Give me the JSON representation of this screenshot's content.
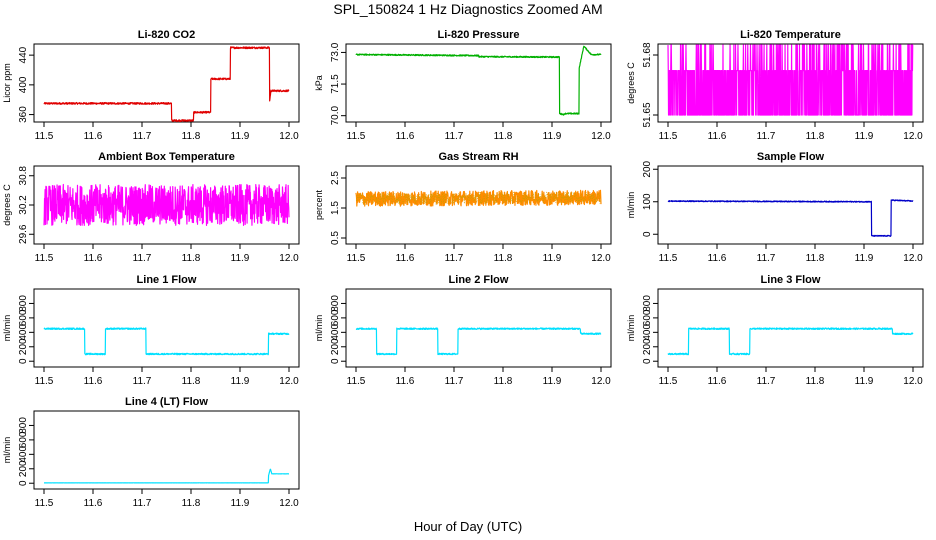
{
  "figure": {
    "title": "SPL_150824  1 Hz Diagnostics Zoomed AM",
    "xlabel": "Hour of Day (UTC)"
  },
  "chart_data": [
    {
      "type": "line",
      "title": "Li-820 CO2",
      "ylabel": "Licor ppm",
      "color": "#e00000",
      "xlim": [
        11.5,
        12.0
      ],
      "ylim": [
        350,
        455
      ],
      "xticks": [
        "11.5",
        "11.6",
        "11.7",
        "11.8",
        "11.9",
        "12.0"
      ],
      "yticks": [
        360,
        400,
        440
      ],
      "noise": 1.2,
      "series": [
        {
          "x": [
            11.5,
            11.76,
            11.76,
            11.805,
            11.805,
            11.84,
            11.84,
            11.88,
            11.88,
            11.96,
            11.96,
            11.963,
            11.963,
            12.0
          ],
          "y": [
            375,
            375,
            352,
            352,
            363,
            363,
            408,
            408,
            450,
            450,
            375,
            392,
            392,
            392
          ]
        }
      ]
    },
    {
      "type": "line",
      "title": "Li-820 Pressure",
      "ylabel": "kPa",
      "color": "#00b000",
      "xlim": [
        11.5,
        12.0
      ],
      "ylim": [
        69.7,
        73.4
      ],
      "xticks": [
        "11.5",
        "11.6",
        "11.7",
        "11.8",
        "11.9",
        "12.0"
      ],
      "yticks": [
        "70.0",
        "71.5",
        "73.0"
      ],
      "noise": 0.03,
      "series": [
        {
          "x": [
            11.5,
            11.75,
            11.75,
            11.915,
            11.915,
            11.925,
            11.925,
            11.955,
            11.955,
            11.965,
            11.98,
            12.0
          ],
          "y": [
            72.9,
            72.85,
            72.8,
            72.78,
            70.1,
            70.05,
            70.1,
            70.1,
            72.2,
            73.3,
            72.9,
            72.9
          ]
        }
      ]
    },
    {
      "type": "line",
      "title": "Li-820 Temperature",
      "ylabel": "degrees C",
      "color": "#ff00ff",
      "xlim": [
        11.5,
        12.0
      ],
      "ylim": [
        51.6465,
        51.6855
      ],
      "xticks": [
        "11.5",
        "11.6",
        "11.7",
        "11.8",
        "11.9",
        "12.0"
      ],
      "yticks": [
        "51.65",
        "51.68"
      ],
      "mode": "levels",
      "levels": [
        51.65,
        51.6722,
        51.685
      ],
      "weights": [
        0.5,
        0.38,
        0.12
      ],
      "series": [
        {
          "x": [
            11.5,
            12.0
          ],
          "y": [
            51.6722,
            51.6722
          ]
        }
      ]
    },
    {
      "type": "line",
      "title": "Ambient Box Temperature",
      "ylabel": "degrees C",
      "color": "#ff00ff",
      "xlim": [
        11.5,
        12.0
      ],
      "ylim": [
        29.4,
        31.0
      ],
      "xticks": [
        "11.5",
        "11.6",
        "11.7",
        "11.8",
        "11.9",
        "12.0"
      ],
      "yticks": [
        "29.6",
        "30.2",
        "30.8"
      ],
      "noise": 0.42,
      "series": [
        {
          "x": [
            11.5,
            12.0
          ],
          "y": [
            30.2,
            30.2
          ]
        }
      ]
    },
    {
      "type": "line",
      "title": "Gas Stream RH",
      "ylabel": "percent",
      "color": "#ff8c00",
      "overlay_color": "#c8a000",
      "xlim": [
        11.5,
        12.0
      ],
      "ylim": [
        0.3,
        2.9
      ],
      "xticks": [
        "11.5",
        "11.6",
        "11.7",
        "11.8",
        "11.9",
        "12.0"
      ],
      "yticks": [
        "0.5",
        "1.5",
        "2.5"
      ],
      "noise": 0.25,
      "series": [
        {
          "x": [
            11.5,
            12.0
          ],
          "y": [
            1.8,
            1.85
          ]
        }
      ]
    },
    {
      "type": "line",
      "title": "Sample Flow",
      "ylabel": "ml/min",
      "color": "#0000c8",
      "xlim": [
        11.5,
        12.0
      ],
      "ylim": [
        -30,
        210
      ],
      "xticks": [
        "11.5",
        "11.6",
        "11.7",
        "11.8",
        "11.9",
        "12.0"
      ],
      "yticks": [
        0,
        100,
        200
      ],
      "noise": 1.5,
      "series": [
        {
          "x": [
            11.5,
            11.915,
            11.915,
            11.955,
            11.955,
            12.0
          ],
          "y": [
            102,
            100,
            -5,
            -5,
            105,
            102
          ]
        }
      ]
    },
    {
      "type": "line",
      "title": "Line 1 Flow",
      "ylabel": "ml/min",
      "color": "#00e0ff",
      "xlim": [
        11.5,
        12.0
      ],
      "ylim": [
        -80,
        1000
      ],
      "xticks": [
        "11.5",
        "11.6",
        "11.7",
        "11.8",
        "11.9",
        "12.0"
      ],
      "yticks": [
        0,
        200,
        400,
        600,
        800
      ],
      "noise": 10,
      "series": [
        {
          "x": [
            11.5,
            11.583,
            11.583,
            11.625,
            11.625,
            11.708,
            11.708,
            11.958,
            11.958,
            12.0
          ],
          "y": [
            450,
            450,
            100,
            100,
            450,
            450,
            100,
            100,
            380,
            380
          ]
        }
      ]
    },
    {
      "type": "line",
      "title": "Line 2 Flow",
      "ylabel": "ml/min",
      "color": "#00e0ff",
      "xlim": [
        11.5,
        12.0
      ],
      "ylim": [
        -80,
        1000
      ],
      "xticks": [
        "11.5",
        "11.6",
        "11.7",
        "11.8",
        "11.9",
        "12.0"
      ],
      "yticks": [
        0,
        200,
        400,
        600,
        800
      ],
      "noise": 10,
      "series": [
        {
          "x": [
            11.5,
            11.542,
            11.542,
            11.583,
            11.583,
            11.667,
            11.667,
            11.708,
            11.708,
            11.958,
            11.958,
            12.0
          ],
          "y": [
            450,
            450,
            100,
            100,
            450,
            450,
            100,
            100,
            450,
            450,
            380,
            380
          ]
        }
      ]
    },
    {
      "type": "line",
      "title": "Line 3 Flow",
      "ylabel": "ml/min",
      "color": "#00e0ff",
      "xlim": [
        11.5,
        12.0
      ],
      "ylim": [
        -80,
        1000
      ],
      "xticks": [
        "11.5",
        "11.6",
        "11.7",
        "11.8",
        "11.9",
        "12.0"
      ],
      "yticks": [
        0,
        200,
        400,
        600,
        800
      ],
      "noise": 10,
      "series": [
        {
          "x": [
            11.5,
            11.542,
            11.542,
            11.625,
            11.625,
            11.667,
            11.667,
            11.958,
            11.958,
            12.0
          ],
          "y": [
            100,
            100,
            450,
            450,
            100,
            100,
            450,
            450,
            380,
            380
          ]
        }
      ]
    },
    {
      "type": "line",
      "title": "Line 4 (LT) Flow",
      "ylabel": "ml/min",
      "color": "#00e0ff",
      "xlim": [
        11.5,
        12.0
      ],
      "ylim": [
        -80,
        1000
      ],
      "xticks": [
        "11.5",
        "11.6",
        "11.7",
        "11.8",
        "11.9",
        "12.0"
      ],
      "yticks": [
        0,
        200,
        400,
        600,
        800
      ],
      "noise": 1,
      "series": [
        {
          "x": [
            11.5,
            11.958,
            11.958,
            11.962,
            11.965,
            12.0
          ],
          "y": [
            5,
            5,
            100,
            200,
            130,
            130
          ]
        }
      ]
    }
  ]
}
